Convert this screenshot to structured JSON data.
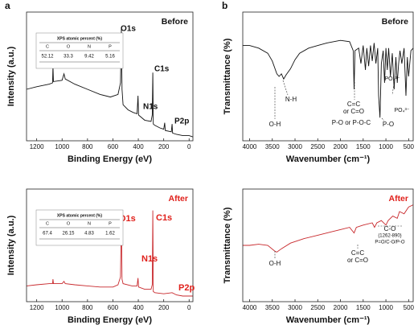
{
  "panel_labels": [
    "a",
    "b"
  ],
  "chart_data": [
    {
      "type": "line",
      "title": "Before",
      "title_color": "#111111",
      "color": "#111111",
      "xlabel": "Binding Energy (eV)",
      "ylabel": "Intensity (a.u.)",
      "xlim": [
        1280,
        -30
      ],
      "xticks": [
        1200,
        1000,
        800,
        600,
        400,
        200,
        0
      ],
      "ylim": [
        0,
        100
      ],
      "x": [
        1280,
        1200,
        1150,
        1100,
        1075,
        1072,
        1068,
        1000,
        985,
        975,
        900,
        800,
        700,
        620,
        560,
        540,
        533,
        528,
        520,
        480,
        440,
        410,
        402,
        398,
        350,
        300,
        290,
        286,
        282,
        270,
        230,
        200,
        192,
        188,
        140,
        134,
        130,
        100,
        50,
        0,
        -30
      ],
      "values": [
        40,
        42,
        43,
        44,
        45,
        58,
        46,
        47,
        52,
        48,
        44,
        40,
        36,
        34,
        36,
        45,
        87,
        40,
        28,
        24,
        22,
        21,
        35,
        20,
        16,
        15,
        20,
        53,
        13,
        12,
        10,
        9,
        14,
        8,
        7,
        13,
        6,
        5,
        4,
        4,
        3
      ],
      "annotations": [
        "O1s",
        "N1s",
        "C1s",
        "P2p"
      ],
      "inset_table": {
        "title": "XPS atomic percent (%)",
        "columns": [
          "C",
          "O",
          "N",
          "P"
        ],
        "values": [
          52.12,
          33.3,
          9.42,
          5.16
        ]
      }
    },
    {
      "type": "line",
      "title": "After",
      "title_color": "#e0201b",
      "color": "#c8282c",
      "xlabel": "Binding Energy (eV)",
      "ylabel": "Intensity (a.u.)",
      "xlim": [
        1280,
        -30
      ],
      "xticks": [
        1200,
        1000,
        800,
        600,
        400,
        200,
        0
      ],
      "ylim": [
        0,
        100
      ],
      "x": [
        1280,
        1200,
        1100,
        1075,
        1072,
        1068,
        1000,
        985,
        975,
        900,
        800,
        700,
        600,
        560,
        540,
        533,
        528,
        520,
        450,
        410,
        402,
        398,
        350,
        300,
        290,
        286,
        282,
        270,
        200,
        134,
        100,
        50,
        0,
        -30
      ],
      "values": [
        14,
        15,
        16,
        16,
        20,
        16,
        16,
        18,
        16,
        15,
        14,
        13,
        13,
        15,
        22,
        80,
        20,
        16,
        14,
        14,
        21,
        13,
        11,
        11,
        15,
        81,
        9,
        8,
        7,
        8,
        6,
        5,
        5,
        5
      ],
      "annotations": [
        "O1s",
        "N1s",
        "C1s",
        "P2p"
      ],
      "inset_table": {
        "title": "XPS atomic percent (%)",
        "columns": [
          "C",
          "O",
          "N",
          "P"
        ],
        "values": [
          67.4,
          26.15,
          4.83,
          1.62
        ]
      }
    },
    {
      "type": "line",
      "title": "Before",
      "title_color": "#111111",
      "color": "#111111",
      "xlabel": "Wavenumber (cm⁻¹)",
      "ylabel": "Transmittance (%)",
      "xlim": [
        4150,
        400
      ],
      "xticks": [
        4000,
        3500,
        3000,
        2500,
        2000,
        1500,
        1000,
        500
      ],
      "ylim": [
        0,
        100
      ],
      "x": [
        4150,
        4000,
        3800,
        3600,
        3500,
        3400,
        3350,
        3300,
        3250,
        3200,
        3100,
        3000,
        2900,
        2700,
        2500,
        2300,
        2000,
        1800,
        1720,
        1700,
        1680,
        1600,
        1550,
        1500,
        1450,
        1420,
        1380,
        1340,
        1300,
        1260,
        1220,
        1180,
        1160,
        1130,
        1100,
        1060,
        1030,
        1000,
        970,
        940,
        900,
        860,
        820,
        780,
        750,
        720,
        690,
        650,
        600,
        560,
        530,
        500,
        450,
        400
      ],
      "values": [
        74,
        74,
        72,
        68,
        62,
        52,
        50,
        52,
        48,
        51,
        56,
        63,
        68,
        72,
        74,
        76,
        78,
        77,
        70,
        40,
        70,
        72,
        60,
        74,
        55,
        72,
        58,
        74,
        62,
        76,
        60,
        72,
        35,
        18,
        60,
        70,
        45,
        72,
        55,
        72,
        50,
        68,
        40,
        65,
        45,
        60,
        70,
        60,
        72,
        35,
        65,
        50,
        70,
        72
      ],
      "annotations": [
        "O-H",
        "N-H",
        "C=C",
        "or C=O",
        "P-O or P-O-C",
        "P-O",
        "PO₄³⁻",
        "PO₄³⁻"
      ]
    },
    {
      "type": "line",
      "title": "After",
      "title_color": "#e0201b",
      "color": "#c8282c",
      "xlabel": "Wavenumber (cm⁻¹)",
      "ylabel": "Transmittance (%)",
      "xlim": [
        4150,
        400
      ],
      "xticks": [
        4000,
        3500,
        3000,
        2500,
        2000,
        1500,
        1000,
        500
      ],
      "ylim": [
        0,
        100
      ],
      "x": [
        4150,
        4000,
        3800,
        3600,
        3450,
        3400,
        3300,
        3100,
        2800,
        2500,
        2200,
        2000,
        1800,
        1700,
        1650,
        1500,
        1300,
        1250,
        1200,
        1100,
        1000,
        950,
        850,
        750,
        700,
        600,
        500,
        400
      ],
      "values": [
        50,
        50,
        51,
        50,
        45,
        44,
        47,
        52,
        56,
        59,
        62,
        64,
        66,
        61,
        66,
        68,
        70,
        66,
        70,
        72,
        68,
        72,
        76,
        74,
        80,
        78,
        84,
        86
      ],
      "annotations": [
        "O-H",
        "C=C",
        "or C=O",
        "C-O",
        "(1262-890)",
        "P=O/C-O/P-O"
      ]
    }
  ]
}
